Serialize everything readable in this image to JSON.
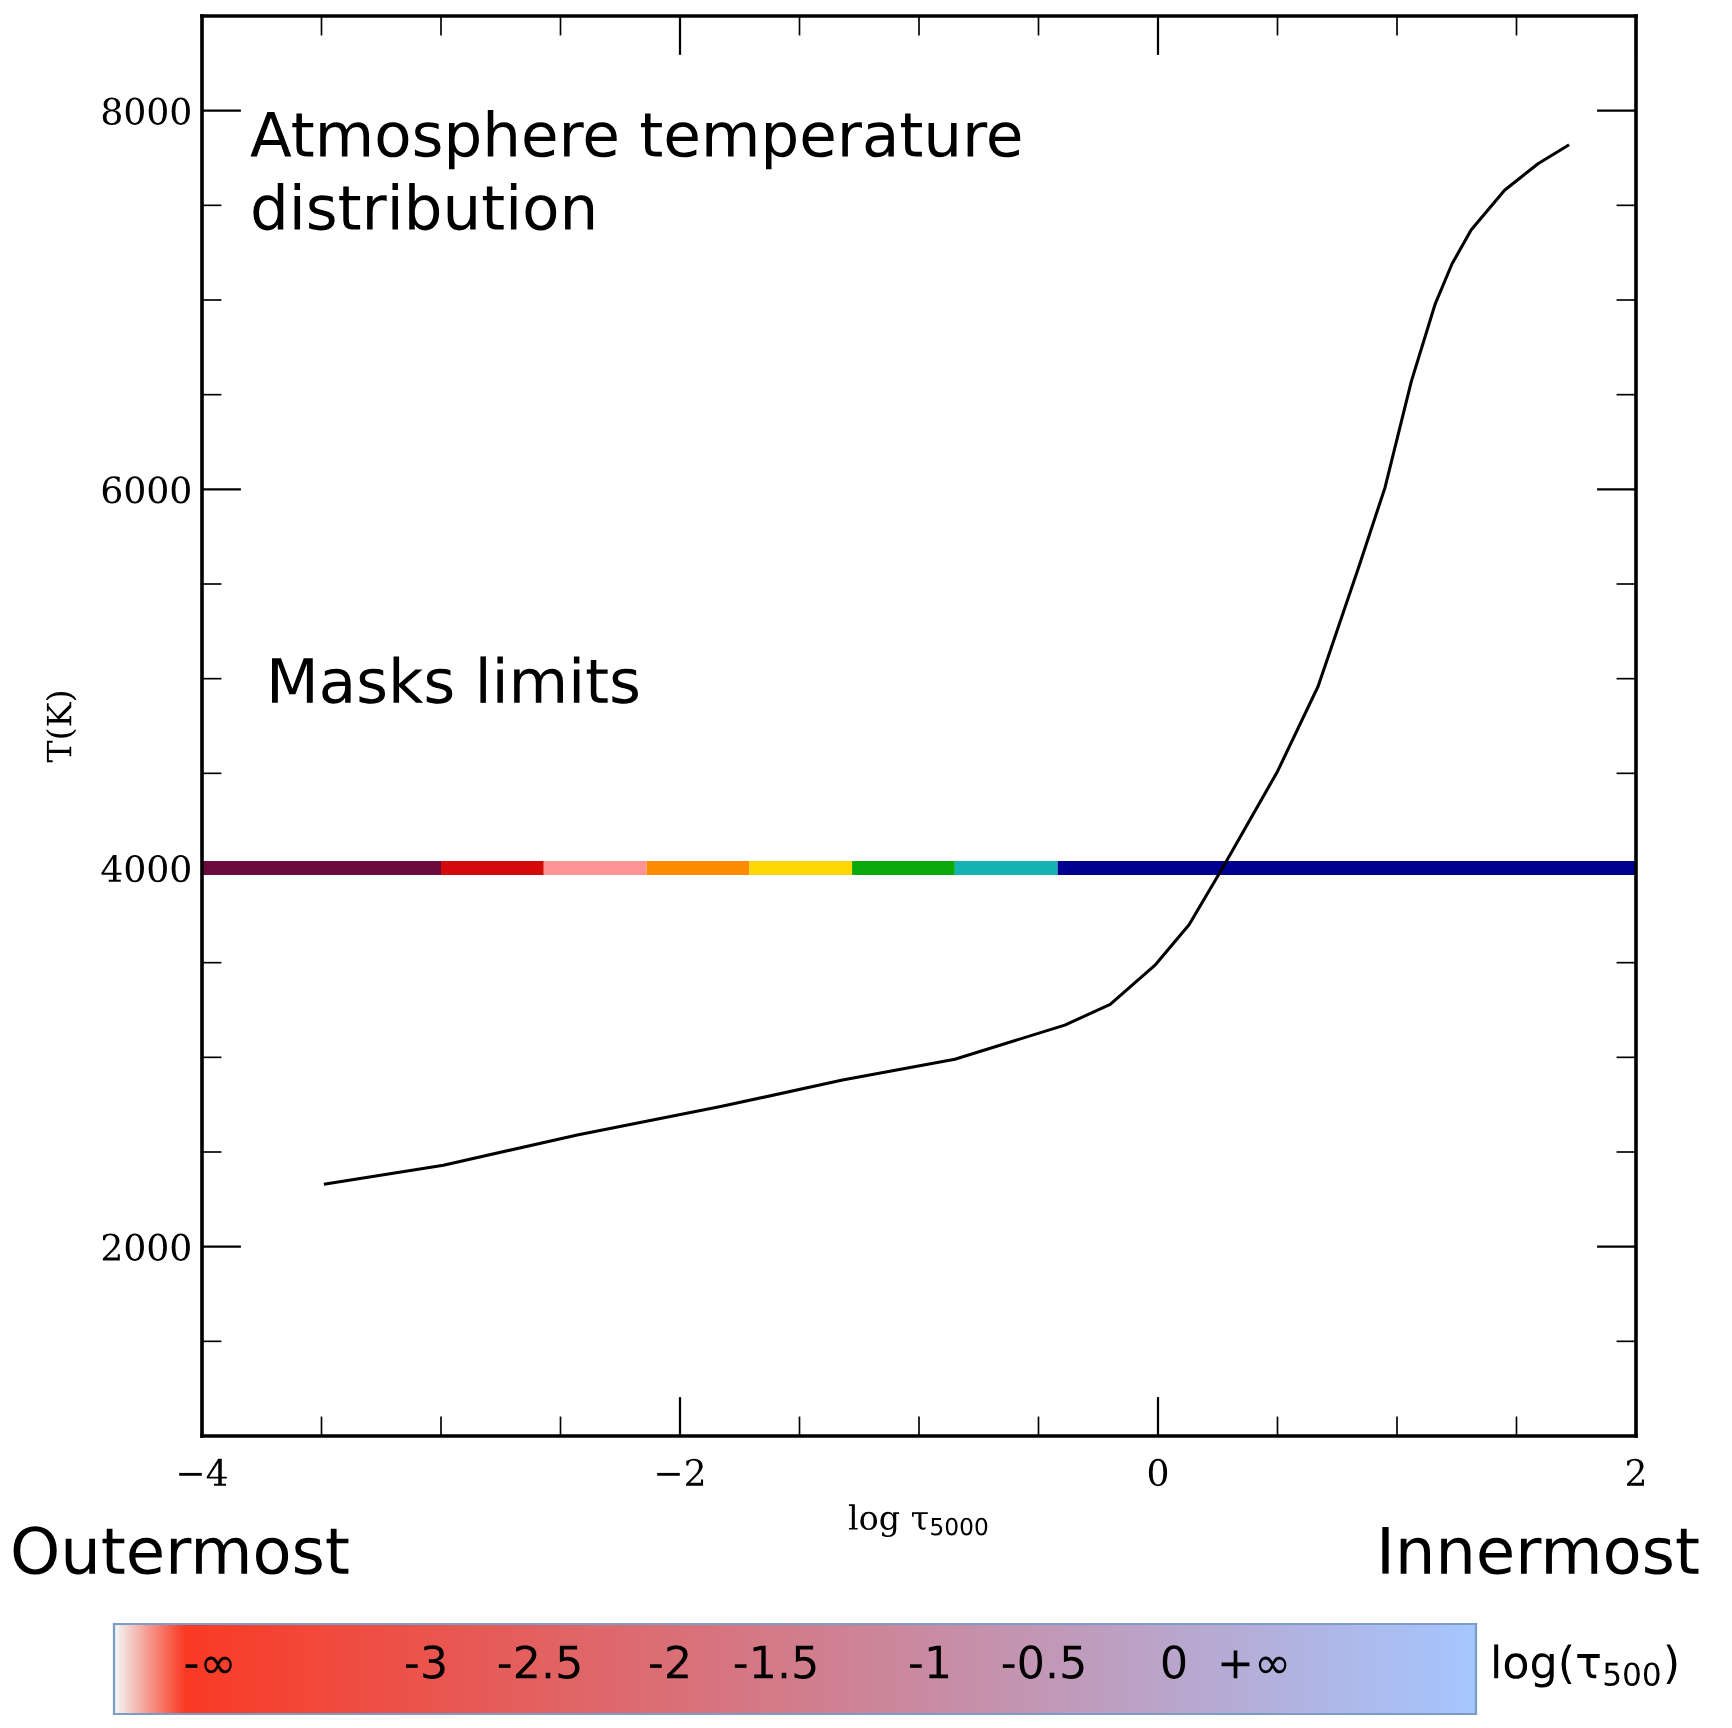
{
  "chart_data": {
    "type": "line",
    "xlabel": "log τ$_{5000}$",
    "ylabel": "T(K)",
    "xlim": [
      -4,
      2
    ],
    "xticks": [
      -4,
      -2,
      0,
      2
    ],
    "ylim": [
      1000,
      8500
    ],
    "yticks": [
      2000,
      4000,
      6000,
      8000
    ],
    "grid": false,
    "legend": false,
    "marker": "none",
    "line_style": "solid",
    "series": [
      {
        "color": "#000000",
        "x": [
          -3.49,
          -2.99,
          -2.43,
          -1.83,
          -1.32,
          -0.85,
          -0.39,
          -0.2,
          -0.01,
          0.13,
          0.27,
          0.5,
          0.67,
          0.84,
          0.95,
          1.06,
          1.16,
          1.23,
          1.31,
          1.45,
          1.59,
          1.72
        ],
        "values": [
          2330,
          2430,
          2590,
          2740,
          2880,
          2990,
          3170,
          3280,
          3490,
          3700,
          4000,
          4510,
          4960,
          5590,
          6010,
          6570,
          6980,
          7190,
          7370,
          7580,
          7720,
          7820
        ]
      },
      {
        "color": "#6b0a3c",
        "x": [
          -4,
          -3
        ],
        "values": [
          4000,
          4000
        ]
      },
      {
        "color": "#d40a0a",
        "x": [
          -3,
          -2.57
        ],
        "values": [
          4000,
          4000
        ]
      },
      {
        "color": "#ff9494",
        "x": [
          -2.57,
          -2.14
        ],
        "values": [
          4000,
          4000
        ]
      },
      {
        "color": "#ff8c00",
        "x": [
          -2.14,
          -1.71
        ],
        "values": [
          4000,
          4000
        ]
      },
      {
        "color": "#ffd700",
        "x": [
          -1.71,
          -1.28
        ],
        "values": [
          4000,
          4000
        ]
      },
      {
        "color": "#0aaa0a",
        "x": [
          -1.28,
          -0.85
        ],
        "values": [
          4000,
          4000
        ]
      },
      {
        "color": "#12b4b4",
        "x": [
          -0.85,
          -0.42
        ],
        "values": [
          4000,
          4000
        ]
      },
      {
        "color": "#000090",
        "x": [
          -0.42,
          2
        ],
        "values": [
          4000,
          4000
        ]
      }
    ],
    "annotations": [
      "Atmosphere temperature\ndistribution",
      "Masks limits",
      "Outermost",
      "Innermost",
      "-∞",
      "-3",
      "-2.5",
      "-2",
      "-1.5",
      "-1",
      "-0.5",
      "0",
      "+∞",
      "log(τ$_{500}$)"
    ]
  }
}
